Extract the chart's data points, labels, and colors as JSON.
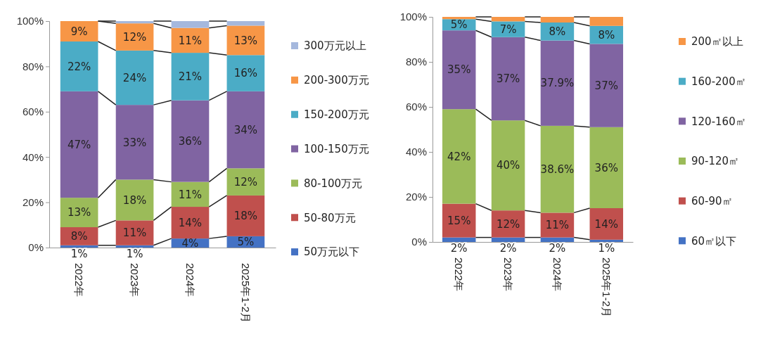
{
  "chart_data": [
    {
      "type": "bar",
      "stacked": true,
      "categories": [
        "2022年",
        "2023年",
        "2024年",
        "2025年1-2月"
      ],
      "ylim": [
        0,
        100
      ],
      "yticks": [
        {
          "value": 0,
          "label": "0%"
        },
        {
          "value": 20,
          "label": "20%"
        },
        {
          "value": 40,
          "label": "40%"
        },
        {
          "value": 60,
          "label": "60%"
        },
        {
          "value": 80,
          "label": "80%"
        },
        {
          "value": 100,
          "label": "100%"
        }
      ],
      "legend": "right",
      "series": [
        {
          "name": "50万元以下",
          "color": "#4472c4",
          "values": [
            1,
            1,
            4,
            5
          ],
          "value_labels": [
            "1%",
            "1%",
            "4%",
            "5%"
          ]
        },
        {
          "name": "50-80万元",
          "color": "#c0504d",
          "values": [
            8,
            11,
            14,
            18
          ],
          "value_labels": [
            "8%",
            "11%",
            "14%",
            "18%"
          ]
        },
        {
          "name": "80-100万元",
          "color": "#9bbb59",
          "values": [
            13,
            18,
            11,
            12
          ],
          "value_labels": [
            "13%",
            "18%",
            "11%",
            "12%"
          ]
        },
        {
          "name": "100-150万元",
          "color": "#8064a2",
          "values": [
            47,
            33,
            36,
            34
          ],
          "value_labels": [
            "47%",
            "33%",
            "36%",
            "34%"
          ]
        },
        {
          "name": "150-200万元",
          "color": "#4bacc6",
          "values": [
            22,
            24,
            21,
            16
          ],
          "value_labels": [
            "22%",
            "24%",
            "21%",
            "16%"
          ]
        },
        {
          "name": "200-300万元",
          "color": "#f79646",
          "values": [
            9,
            12,
            11,
            13
          ],
          "value_labels": [
            "9%",
            "12%",
            "11%",
            "13%"
          ]
        },
        {
          "name": "300万元以上",
          "color": "#a5b8dd",
          "values": [
            0,
            1,
            3,
            2
          ],
          "value_labels": [
            null,
            null,
            null,
            null
          ]
        }
      ]
    },
    {
      "type": "bar",
      "stacked": true,
      "categories": [
        "2022年",
        "2023年",
        "2024年",
        "2025年1-2月"
      ],
      "ylim": [
        0,
        100
      ],
      "yticks": [
        {
          "value": 0,
          "label": "0%"
        },
        {
          "value": 20,
          "label": "20%"
        },
        {
          "value": 40,
          "label": "40%"
        },
        {
          "value": 60,
          "label": "60%"
        },
        {
          "value": 80,
          "label": "80%"
        },
        {
          "value": 100,
          "label": "100%"
        }
      ],
      "legend": "right",
      "series": [
        {
          "name": "60㎡以下",
          "color": "#4472c4",
          "values": [
            2,
            2,
            2,
            1
          ],
          "value_labels": [
            "2%",
            "2%",
            "2%",
            "1%"
          ]
        },
        {
          "name": "60-90㎡",
          "color": "#c0504d",
          "values": [
            15,
            12,
            11,
            14
          ],
          "value_labels": [
            "15%",
            "12%",
            "11%",
            "14%"
          ]
        },
        {
          "name": "90-120㎡",
          "color": "#9bbb59",
          "values": [
            42,
            40,
            38.6,
            36
          ],
          "value_labels": [
            "42%",
            "40%",
            "38.6%",
            "36%"
          ]
        },
        {
          "name": "120-160㎡",
          "color": "#8064a2",
          "values": [
            35,
            37,
            37.9,
            37
          ],
          "value_labels": [
            "35%",
            "37%",
            "37.9%",
            "37%"
          ]
        },
        {
          "name": "160-200㎡",
          "color": "#4bacc6",
          "values": [
            5,
            7,
            8,
            8
          ],
          "value_labels": [
            "5%",
            "7%",
            "8%",
            "8%"
          ]
        },
        {
          "name": "200㎡以上",
          "color": "#f79646",
          "values": [
            1,
            2,
            2.5,
            4
          ],
          "value_labels": [
            null,
            null,
            null,
            null
          ]
        }
      ]
    }
  ]
}
